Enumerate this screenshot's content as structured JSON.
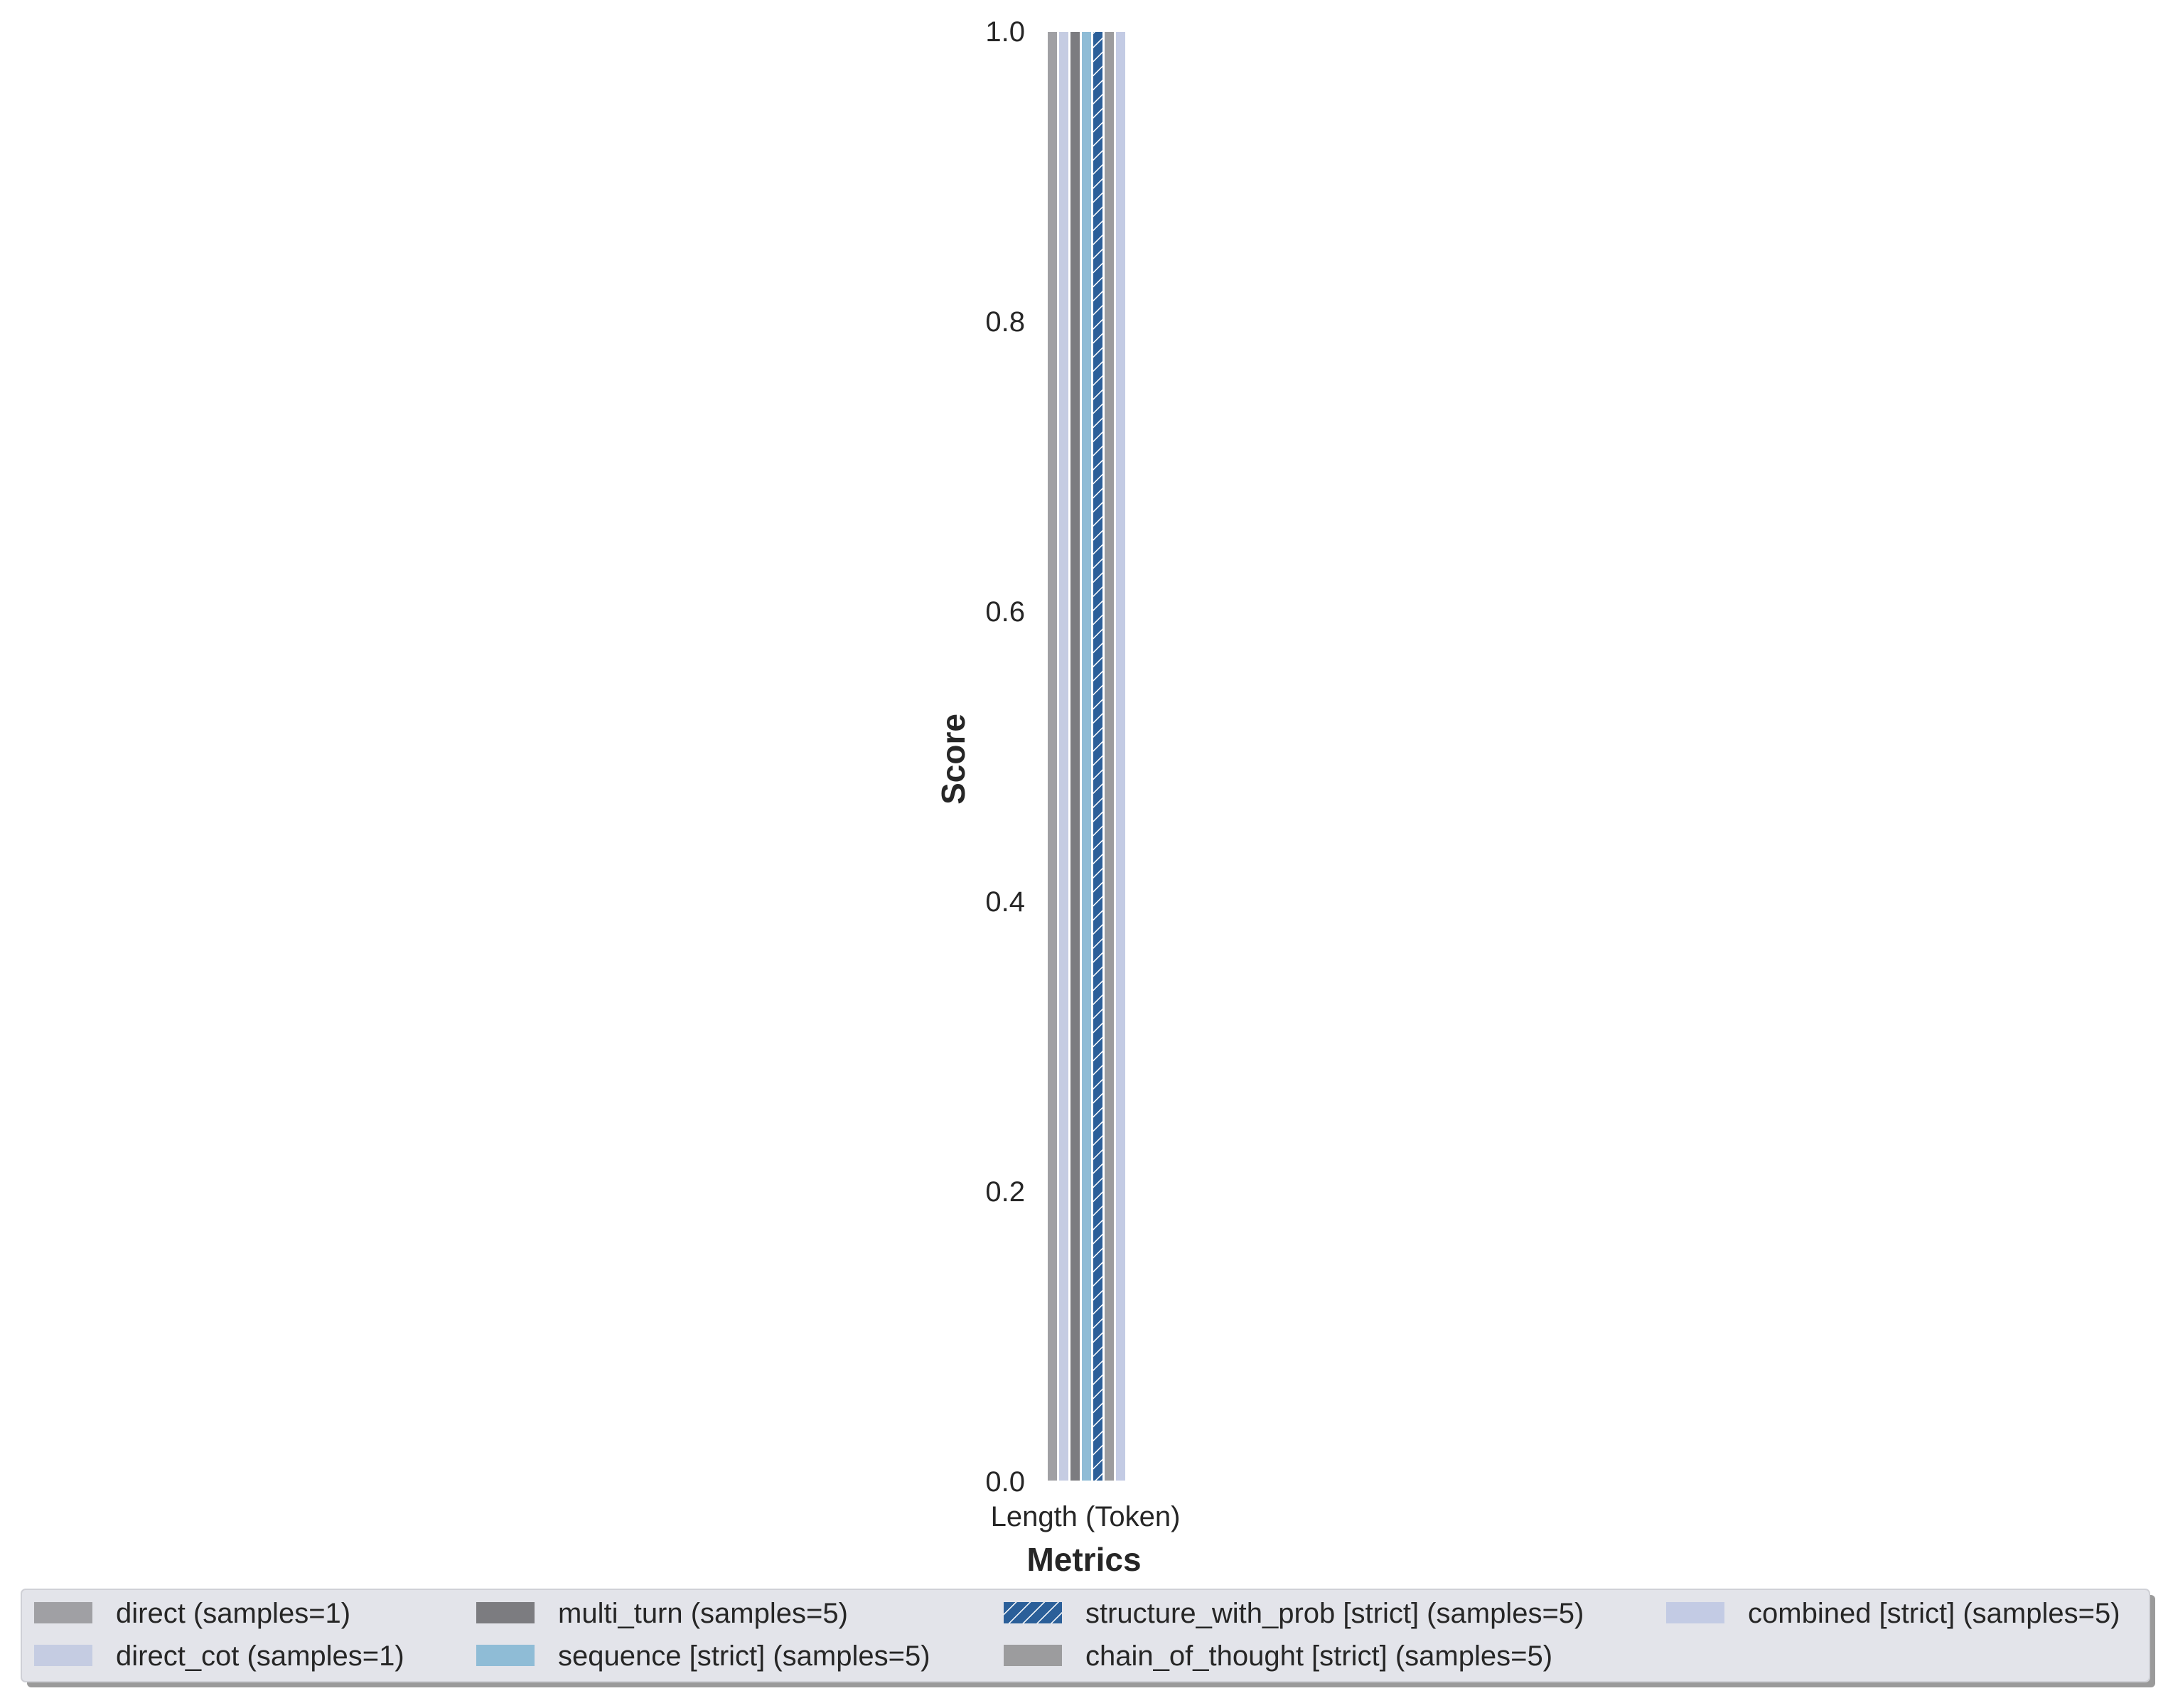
{
  "chart_data": {
    "type": "bar",
    "categories": [
      "Length (Token)"
    ],
    "xlabel": "Metrics",
    "ylabel": "Score",
    "ylim": [
      0,
      1.0
    ],
    "yticks": [
      "0.0",
      "0.2",
      "0.4",
      "0.6",
      "0.8",
      "1.0"
    ],
    "grid": false,
    "legend_position": "bottom",
    "legend_columns": 4,
    "series": [
      {
        "name": "direct (samples=1)",
        "values": [
          1.0
        ],
        "color": "#a0a0a4",
        "hatch": false
      },
      {
        "name": "direct_cot (samples=1)",
        "values": [
          1.0
        ],
        "color": "#c5cce2",
        "hatch": false
      },
      {
        "name": "multi_turn (samples=5)",
        "values": [
          1.0
        ],
        "color": "#7c7c80",
        "hatch": false
      },
      {
        "name": "sequence [strict] (samples=5)",
        "values": [
          1.0
        ],
        "color": "#8fbcd6",
        "hatch": false
      },
      {
        "name": "structure_with_prob [strict] (samples=5)",
        "values": [
          1.0
        ],
        "color": "#2b5f99",
        "hatch": true
      },
      {
        "name": "chain_of_thought [strict] (samples=5)",
        "values": [
          1.0
        ],
        "color": "#9c9c9e",
        "hatch": false
      },
      {
        "name": "combined [strict] (samples=5)",
        "values": [
          1.0
        ],
        "color": "#c3cbe4",
        "hatch": false
      }
    ],
    "legend_order": [
      0,
      1,
      2,
      3,
      4,
      5,
      6
    ],
    "legend_background": "#e3e4ea"
  }
}
